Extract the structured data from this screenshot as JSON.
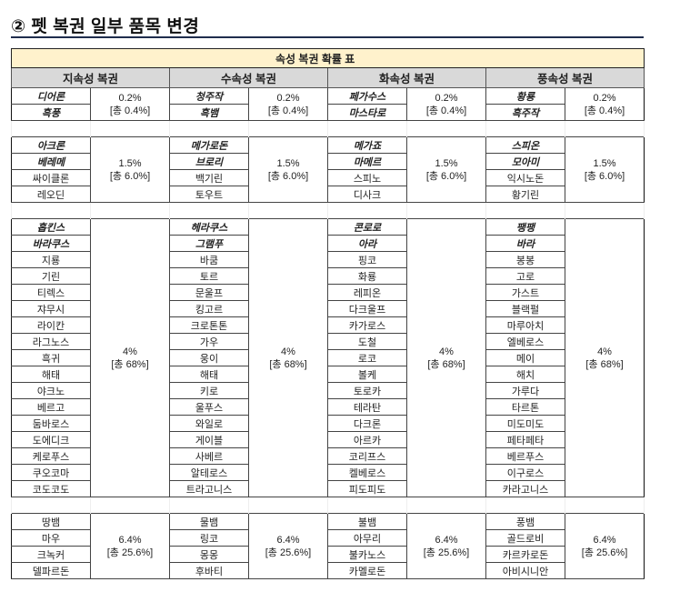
{
  "heading": "② 펫 복권 일부 품목 변경",
  "table": {
    "caption": "속성 복권 확률 표",
    "headers": [
      "지속성 복권",
      "수속성 복권",
      "화속성 복권",
      "풍속성 복권"
    ],
    "colors": {
      "caption_bg": "#fff2cc",
      "header_bg": "#d9d9d9",
      "rule": "#1f2d4d"
    },
    "blocks": [
      {
        "groups": [
          {
            "rate": "0.2%",
            "total": "[총 0.4%]",
            "featured": 2,
            "items": [
              "디어론",
              "흑풍"
            ]
          },
          {
            "rate": "0.2%",
            "total": "[총 0.4%]",
            "featured": 2,
            "items": [
              "청주작",
              "흑뱀"
            ]
          },
          {
            "rate": "0.2%",
            "total": "[총 0.4%]",
            "featured": 2,
            "items": [
              "페가수스",
              "마스타로"
            ]
          },
          {
            "rate": "0.2%",
            "total": "[총 0.4%]",
            "featured": 2,
            "items": [
              "황룡",
              "흑주작"
            ]
          }
        ]
      },
      {
        "groups": [
          {
            "rate": "1.5%",
            "total": "[총 6.0%]",
            "featured": 2,
            "items": [
              "아크론",
              "베레메",
              "싸이클론",
              "레오딘"
            ]
          },
          {
            "rate": "1.5%",
            "total": "[총 6.0%]",
            "featured": 2,
            "items": [
              "메가로돈",
              "브로리",
              "백기린",
              "토우트"
            ]
          },
          {
            "rate": "1.5%",
            "total": "[총 6.0%]",
            "featured": 2,
            "items": [
              "메가죠",
              "마메르",
              "스피노",
              "디사크"
            ]
          },
          {
            "rate": "1.5%",
            "total": "[총 6.0%]",
            "featured": 2,
            "items": [
              "스피온",
              "모아미",
              "익시노돈",
              "황기린"
            ]
          }
        ]
      },
      {
        "groups": [
          {
            "rate": "4%",
            "total": "[총 68%]",
            "featured": 2,
            "items": [
              "홉킨스",
              "바라쿠스",
              "지룡",
              "기린",
              "티렉스",
              "쟈무시",
              "라이칸",
              "라그노스",
              "흑귀",
              "해태",
              "야크노",
              "베르고",
              "둠바로스",
              "도에디크",
              "케로푸스",
              "쿠오코마",
              "코도코도"
            ]
          },
          {
            "rate": "4%",
            "total": "[총 68%]",
            "featured": 2,
            "items": [
              "헤라쿠스",
              "그램푸",
              "바쿰",
              "토르",
              "문울프",
              "킹고르",
              "크로톤톤",
              "가우",
              "웅이",
              "해태",
              "키로",
              "울푸스",
              "와일로",
              "게이블",
              "사베르",
              "알테로스",
              "트라고니스"
            ]
          },
          {
            "rate": "4%",
            "total": "[총 68%]",
            "featured": 2,
            "items": [
              "콘로로",
              "아라",
              "핑코",
              "화룡",
              "레피온",
              "다크울프",
              "카가로스",
              "도철",
              "로코",
              "볼케",
              "토로카",
              "테라탄",
              "다크론",
              "아르카",
              "코리프스",
              "켈베로스",
              "피도피도"
            ]
          },
          {
            "rate": "4%",
            "total": "[총 68%]",
            "featured": 2,
            "items": [
              "팽팽",
              "바라",
              "봉봉",
              "고로",
              "가스트",
              "블랙펄",
              "마루아치",
              "엘베로스",
              "메이",
              "해치",
              "가루다",
              "타르톤",
              "미도미도",
              "페타페타",
              "베르푸스",
              "이구로스",
              "카라고니스"
            ]
          }
        ]
      },
      {
        "groups": [
          {
            "rate": "6.4%",
            "total": "[총 25.6%]",
            "featured": 0,
            "items": [
              "땅뱀",
              "마우",
              "크녹커",
              "델파르돈"
            ]
          },
          {
            "rate": "6.4%",
            "total": "[총 25.6%]",
            "featured": 0,
            "items": [
              "물뱀",
              "링코",
              "몽몽",
              "후바티"
            ]
          },
          {
            "rate": "6.4%",
            "total": "[총 25.6%]",
            "featured": 0,
            "items": [
              "불뱀",
              "아무리",
              "불카노스",
              "카멜로돈"
            ]
          },
          {
            "rate": "6.4%",
            "total": "[총 25.6%]",
            "featured": 0,
            "items": [
              "풍뱀",
              "골드로비",
              "카르카로돈",
              "아비시니안"
            ]
          }
        ]
      }
    ]
  }
}
